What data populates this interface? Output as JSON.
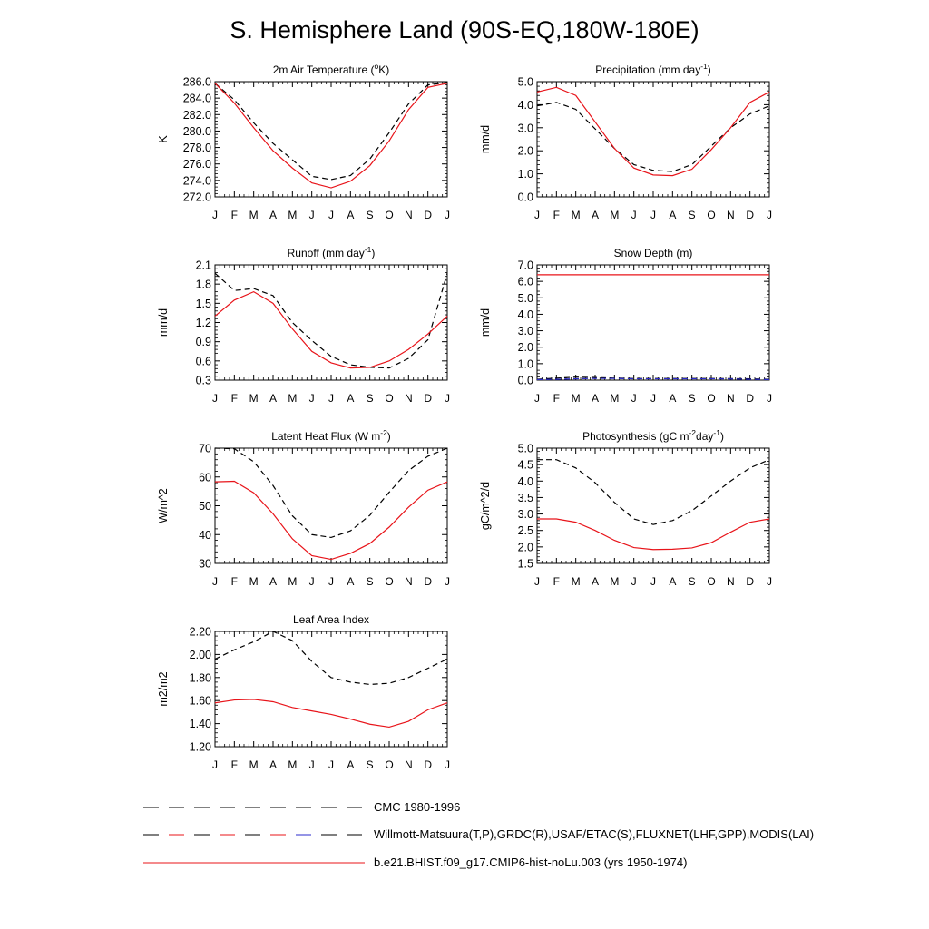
{
  "title": "S. Hemisphere Land (90S-EQ,180W-180E)",
  "months": [
    "J",
    "F",
    "M",
    "A",
    "M",
    "J",
    "J",
    "A",
    "S",
    "O",
    "N",
    "D",
    "J"
  ],
  "colors": {
    "model": "#e8141a",
    "obs": "#000000",
    "obs_alt": "#2b2bcc"
  },
  "chart_data": [
    {
      "type": "line",
      "title_main": "2m Air Temperature (",
      "title_sup": "o",
      "title_end": "K)",
      "ylabel": "K",
      "ylim": [
        272.0,
        286.0
      ],
      "ticks": [
        272.0,
        274.0,
        276.0,
        278.0,
        280.0,
        282.0,
        284.0,
        286.0
      ],
      "tick_labels": [
        "272.0",
        "274.0",
        "276.0",
        "278.0",
        "280.0",
        "282.0",
        "284.0",
        "286.0"
      ],
      "series": [
        {
          "role": "model",
          "values": [
            285.8,
            283.4,
            280.4,
            277.6,
            275.5,
            273.7,
            273.1,
            273.9,
            275.8,
            278.8,
            282.6,
            285.3,
            285.8
          ]
        },
        {
          "role": "obs",
          "values": [
            285.8,
            283.8,
            281.0,
            278.5,
            276.5,
            274.5,
            274.1,
            274.6,
            276.6,
            279.8,
            283.3,
            285.6,
            285.9
          ]
        }
      ]
    },
    {
      "type": "line",
      "title_main": "Precipitation (mm day",
      "title_sup": "-1",
      "title_end": ")",
      "ylabel": "mm/d",
      "ylim": [
        0.0,
        5.0
      ],
      "ticks": [
        0.0,
        1.0,
        2.0,
        3.0,
        4.0,
        5.0
      ],
      "tick_labels": [
        "0.0",
        "1.0",
        "2.0",
        "3.0",
        "4.0",
        "5.0"
      ],
      "series": [
        {
          "role": "model",
          "values": [
            4.55,
            4.75,
            4.4,
            3.25,
            2.1,
            1.25,
            0.95,
            0.92,
            1.2,
            2.05,
            3.0,
            4.1,
            4.55
          ]
        },
        {
          "role": "obs",
          "values": [
            3.95,
            4.1,
            3.8,
            2.95,
            2.1,
            1.4,
            1.15,
            1.1,
            1.4,
            2.2,
            3.0,
            3.6,
            3.95
          ]
        }
      ]
    },
    {
      "type": "line",
      "title_main": "Runoff (mm day",
      "title_sup": "-1",
      "title_end": ")",
      "ylabel": "mm/d",
      "ylim": [
        0.3,
        2.1
      ],
      "ticks": [
        0.3,
        0.6,
        0.9,
        1.2,
        1.5,
        1.8,
        2.1
      ],
      "tick_labels": [
        "0.3",
        "0.6",
        "0.9",
        "1.2",
        "1.5",
        "1.8",
        "2.1"
      ],
      "series": [
        {
          "role": "model",
          "values": [
            1.3,
            1.55,
            1.68,
            1.5,
            1.1,
            0.75,
            0.57,
            0.49,
            0.5,
            0.6,
            0.78,
            1.02,
            1.3
          ]
        },
        {
          "role": "obs",
          "values": [
            1.97,
            1.7,
            1.73,
            1.62,
            1.2,
            0.92,
            0.67,
            0.54,
            0.5,
            0.49,
            0.64,
            0.93,
            1.97
          ]
        }
      ]
    },
    {
      "type": "line",
      "title_main": "Snow Depth (m)",
      "title_sup": "",
      "title_end": "",
      "ylabel": "mm/d",
      "ylim": [
        0.0,
        7.0
      ],
      "ticks": [
        0.0,
        1.0,
        2.0,
        3.0,
        4.0,
        5.0,
        6.0,
        7.0
      ],
      "tick_labels": [
        "0.0",
        "1.0",
        "2.0",
        "3.0",
        "4.0",
        "5.0",
        "6.0",
        "7.0"
      ],
      "series": [
        {
          "role": "model",
          "values": [
            6.4,
            6.4,
            6.4,
            6.4,
            6.4,
            6.4,
            6.4,
            6.4,
            6.4,
            6.4,
            6.4,
            6.4,
            6.4
          ]
        },
        {
          "role": "obs",
          "values": [
            0.05,
            0.12,
            0.18,
            0.16,
            0.12,
            0.1,
            0.1,
            0.1,
            0.1,
            0.1,
            0.09,
            0.08,
            0.05
          ]
        },
        {
          "role": "obs_alt",
          "values": [
            0.03,
            0.05,
            0.08,
            0.1,
            0.1,
            0.08,
            0.08,
            0.08,
            0.08,
            0.08,
            0.07,
            0.05,
            0.03
          ]
        }
      ]
    },
    {
      "type": "line",
      "title_main": "Latent Heat Flux (W m",
      "title_sup": "-2",
      "title_end": ")",
      "ylabel": "W/m^2",
      "ylim": [
        30,
        70
      ],
      "ticks": [
        30,
        40,
        50,
        60,
        70
      ],
      "tick_labels": [
        "30",
        "40",
        "50",
        "60",
        "70"
      ],
      "series": [
        {
          "role": "model",
          "values": [
            58.3,
            58.5,
            54.5,
            47.2,
            38.5,
            32.7,
            31.4,
            33.5,
            36.9,
            42.6,
            49.5,
            55.4,
            58.3
          ]
        },
        {
          "role": "obs",
          "values": [
            70.0,
            69.8,
            65.3,
            57.0,
            46.5,
            40.0,
            39.0,
            41.3,
            46.7,
            54.7,
            62.2,
            67.2,
            70.0
          ]
        }
      ]
    },
    {
      "type": "line",
      "title_main": "Photosynthesis (gC m",
      "title_sup": "-2",
      "title_end": "day",
      "title_sup2": "-1",
      "title_end2": ")",
      "ylabel": "gC/m^2/d",
      "ylim": [
        1.5,
        5.0
      ],
      "ticks": [
        1.5,
        2.0,
        2.5,
        3.0,
        3.5,
        4.0,
        4.5,
        5.0
      ],
      "tick_labels": [
        "1.5",
        "2.0",
        "2.5",
        "3.0",
        "3.5",
        "4.0",
        "4.5",
        "5.0"
      ],
      "series": [
        {
          "role": "model",
          "values": [
            2.85,
            2.85,
            2.75,
            2.5,
            2.2,
            1.98,
            1.92,
            1.93,
            1.97,
            2.13,
            2.45,
            2.75,
            2.85
          ]
        },
        {
          "role": "obs",
          "values": [
            4.65,
            4.65,
            4.4,
            3.95,
            3.35,
            2.85,
            2.68,
            2.8,
            3.1,
            3.55,
            4.0,
            4.4,
            4.65
          ]
        }
      ]
    },
    {
      "type": "line",
      "title_main": "Leaf Area Index",
      "title_sup": "",
      "title_end": "",
      "ylabel": "m2/m2",
      "ylim": [
        1.2,
        2.2
      ],
      "ticks": [
        1.2,
        1.4,
        1.6,
        1.8,
        2.0,
        2.2
      ],
      "tick_labels": [
        "1.20",
        "1.40",
        "1.60",
        "1.80",
        "2.00",
        "2.20"
      ],
      "series": [
        {
          "role": "model",
          "values": [
            1.58,
            1.605,
            1.61,
            1.59,
            1.54,
            1.51,
            1.48,
            1.44,
            1.395,
            1.37,
            1.42,
            1.52,
            1.58
          ]
        },
        {
          "role": "obs",
          "values": [
            1.96,
            2.04,
            2.11,
            2.2,
            2.12,
            1.94,
            1.8,
            1.76,
            1.74,
            1.75,
            1.8,
            1.88,
            1.96
          ]
        }
      ]
    }
  ],
  "legend": [
    {
      "style": "dash-black",
      "label": "CMC 1980-1996"
    },
    {
      "style": "dash-mixed",
      "label": "Willmott-Matsuura(T,P),GRDC(R),USAF/ETAC(S),FLUXNET(LHF,GPP),MODIS(LAI)"
    },
    {
      "style": "solid-red",
      "label": "b.e21.BHIST.f09_g17.CMIP6-hist-noLu.003 (yrs 1950-1974)"
    }
  ]
}
